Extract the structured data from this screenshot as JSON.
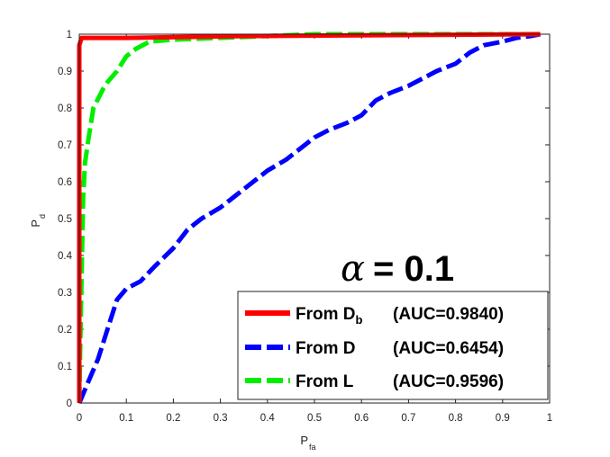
{
  "chart_data": {
    "type": "line",
    "xlabel": "P",
    "xlabel_sub": "fa",
    "ylabel": "P",
    "ylabel_sub": "d",
    "xlim": [
      0,
      1
    ],
    "ylim": [
      0,
      1
    ],
    "xticks": [
      "0",
      "0.1",
      "0.2",
      "0.3",
      "0.4",
      "0.5",
      "0.6",
      "0.7",
      "0.8",
      "0.9",
      "1"
    ],
    "yticks": [
      "0",
      "0.1",
      "0.2",
      "0.3",
      "0.4",
      "0.5",
      "0.6",
      "0.7",
      "0.8",
      "0.9",
      "1"
    ],
    "annotation": {
      "symbol": "α",
      "text": "= 0.1"
    },
    "legend_position": "bottom-right",
    "series": [
      {
        "label_main": "From D",
        "label_sub": "b",
        "label_auc": "(AUC=0.9840)",
        "color": "#ff0000",
        "style": "solid",
        "x": [
          0,
          0,
          0,
          0.005,
          0.01,
          0.1,
          0.35,
          0.98
        ],
        "y": [
          0,
          0.5,
          0.97,
          0.99,
          0.99,
          0.99,
          0.995,
          1.0
        ]
      },
      {
        "label_main": "From D",
        "label_sub": "",
        "label_auc": "(AUC=0.6454)",
        "color": "#0000ff",
        "style": "dashed",
        "x": [
          0,
          0.01,
          0.02,
          0.04,
          0.06,
          0.08,
          0.1,
          0.13,
          0.16,
          0.2,
          0.23,
          0.26,
          0.3,
          0.33,
          0.37,
          0.4,
          0.44,
          0.47,
          0.5,
          0.53,
          0.57,
          0.6,
          0.63,
          0.66,
          0.7,
          0.73,
          0.76,
          0.8,
          0.83,
          0.86,
          0.9,
          0.93,
          0.96,
          0.98
        ],
        "y": [
          0,
          0.03,
          0.06,
          0.12,
          0.2,
          0.28,
          0.31,
          0.33,
          0.37,
          0.42,
          0.47,
          0.5,
          0.53,
          0.56,
          0.6,
          0.63,
          0.66,
          0.69,
          0.72,
          0.74,
          0.76,
          0.78,
          0.82,
          0.84,
          0.86,
          0.88,
          0.9,
          0.92,
          0.95,
          0.97,
          0.98,
          0.99,
          0.995,
          1.0
        ]
      },
      {
        "label_main": "From L",
        "label_sub": "",
        "label_auc": "(AUC=0.9596)",
        "color": "#00ee00",
        "style": "dashed",
        "x": [
          0,
          0.002,
          0.005,
          0.008,
          0.012,
          0.02,
          0.03,
          0.05,
          0.06,
          0.08,
          0.1,
          0.12,
          0.15,
          0.2,
          0.3,
          0.4,
          0.5,
          0.7,
          0.98
        ],
        "y": [
          0,
          0.15,
          0.35,
          0.55,
          0.65,
          0.72,
          0.8,
          0.85,
          0.87,
          0.9,
          0.94,
          0.96,
          0.98,
          0.985,
          0.99,
          0.995,
          1.0,
          1.0,
          1.0
        ]
      }
    ]
  }
}
